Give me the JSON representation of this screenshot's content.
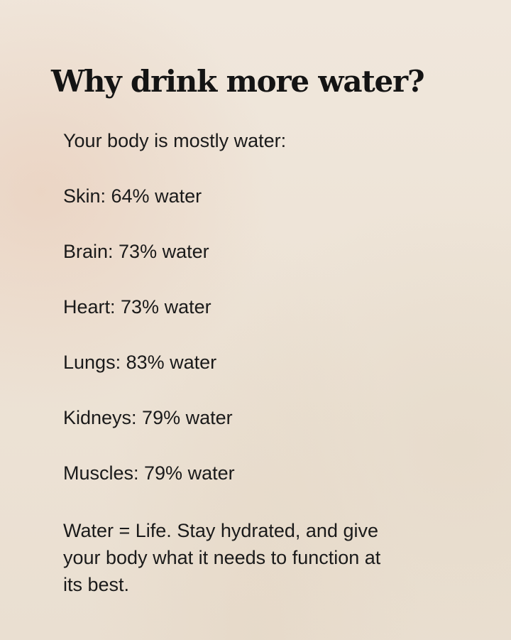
{
  "title": "Why drink more water?",
  "intro": "Your body is mostly water:",
  "organs": [
    {
      "text": "Skin: 64% water",
      "name": "Skin",
      "percent": 64
    },
    {
      "text": "Brain: 73% water",
      "name": "Brain",
      "percent": 73
    },
    {
      "text": "Heart: 73% water",
      "name": "Heart",
      "percent": 73
    },
    {
      "text": "Lungs: 83% water",
      "name": "Lungs",
      "percent": 83
    },
    {
      "text": "Kidneys: 79% water",
      "name": "Kidneys",
      "percent": 79
    },
    {
      "text": "Muscles: 79% water",
      "name": "Muscles",
      "percent": 79
    }
  ],
  "closing": "Water = Life. Stay hydrated, and give your body what it needs to function at its best.",
  "colors": {
    "background": "#efe6da",
    "text": "#1a1a1a"
  }
}
